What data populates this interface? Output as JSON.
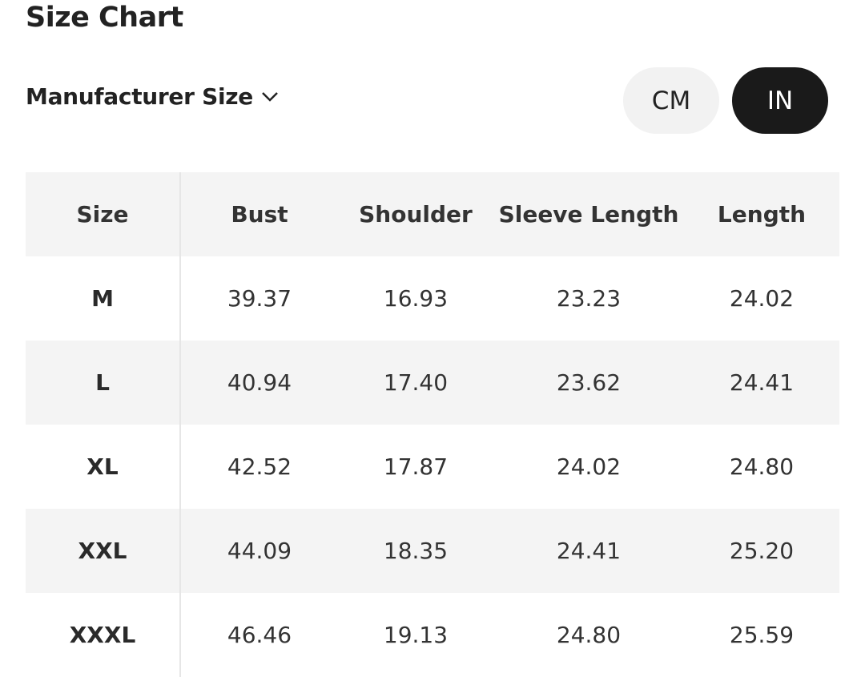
{
  "header": {
    "title": "Size Chart"
  },
  "controls": {
    "size_system": "Manufacturer Size",
    "units": [
      "CM",
      "IN"
    ],
    "selected_unit": "IN"
  },
  "table": {
    "columns": [
      "Size",
      "Bust",
      "Shoulder",
      "Sleeve Length",
      "Length"
    ],
    "rows": [
      [
        "M",
        "39.37",
        "16.93",
        "23.23",
        "24.02"
      ],
      [
        "L",
        "40.94",
        "17.40",
        "23.62",
        "24.41"
      ],
      [
        "XL",
        "42.52",
        "17.87",
        "24.02",
        "24.80"
      ],
      [
        "XXL",
        "44.09",
        "18.35",
        "24.41",
        "25.20"
      ],
      [
        "XXXL",
        "46.46",
        "19.13",
        "24.80",
        "25.59"
      ]
    ]
  }
}
